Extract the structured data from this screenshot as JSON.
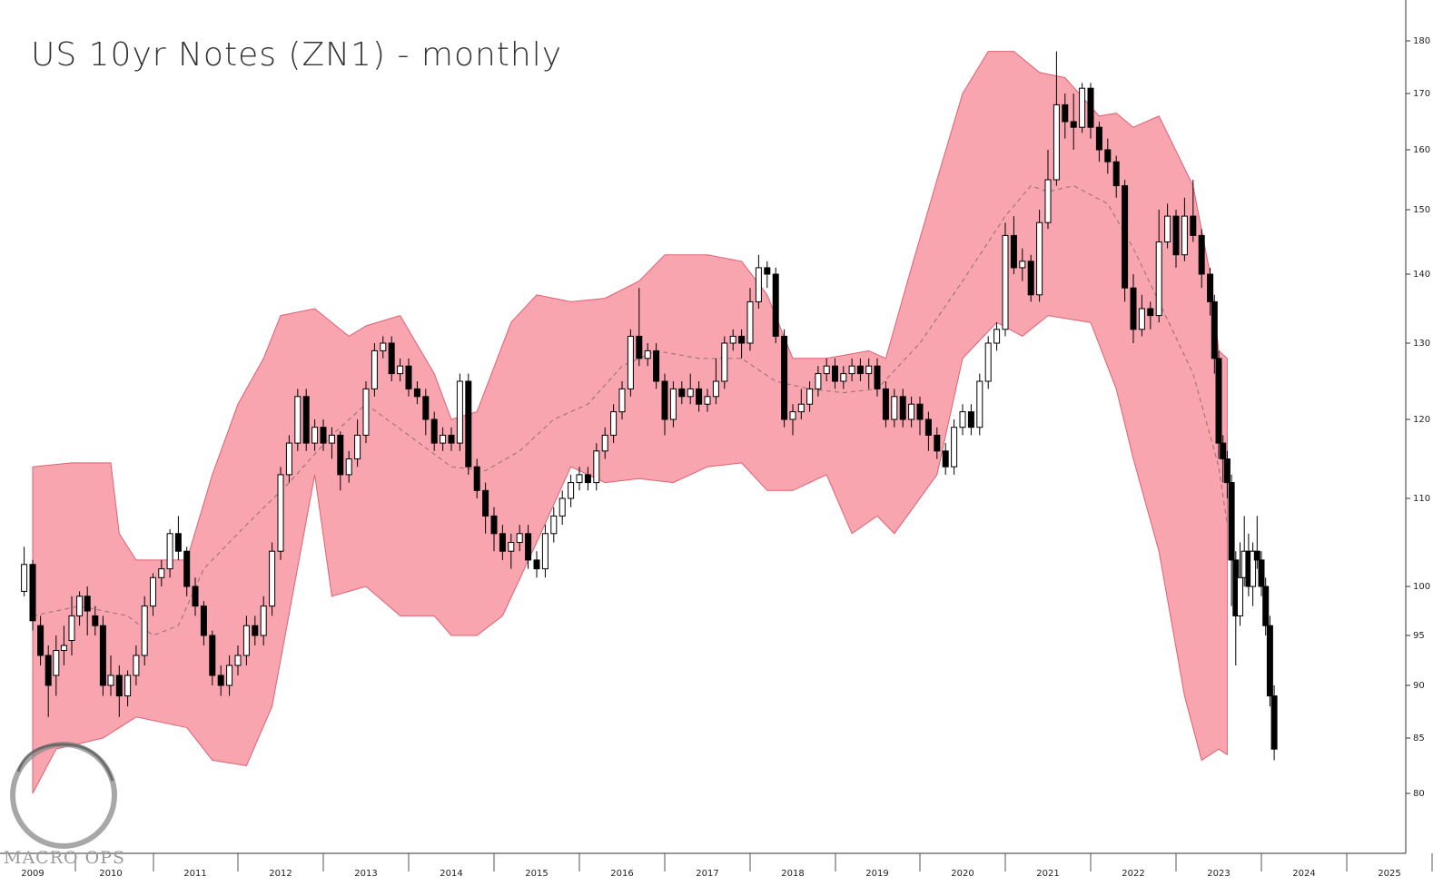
{
  "title": "US 10yr Notes (ZN1) - monthly",
  "logo": {
    "text": "MACRO OPS"
  },
  "colors": {
    "band_fill": "#f8a5b0",
    "band_stroke": "#e06070",
    "midline": "#a07878",
    "down_candle": "#000000",
    "up_candle": "#ffffff"
  },
  "chart_data": {
    "type": "candlestick",
    "title": "US 10yr Notes (ZN1) - monthly",
    "x_ticks": [
      "2009",
      "2010",
      "2011",
      "2012",
      "2013",
      "2014",
      "2015",
      "2016",
      "2017",
      "2018",
      "2019",
      "2020",
      "2021",
      "2022",
      "2023",
      "2024",
      "2025"
    ],
    "y_ticks": [
      "80",
      "85",
      "90",
      "95",
      "100",
      "110",
      "120",
      "130",
      "140",
      "150",
      "160",
      "170",
      "180"
    ],
    "x_range": [
      2009.0,
      2025.5
    ],
    "bollinger_upper": [
      [
        2009.0,
        114
      ],
      [
        2009.5,
        114.5
      ],
      [
        2010.0,
        114.5
      ],
      [
        2010.1,
        106
      ],
      [
        2010.3,
        103
      ],
      [
        2010.9,
        103
      ],
      [
        2011.2,
        113
      ],
      [
        2011.5,
        122
      ],
      [
        2011.8,
        128
      ],
      [
        2012.0,
        134
      ],
      [
        2012.4,
        135
      ],
      [
        2012.8,
        131
      ],
      [
        2013.0,
        132.5
      ],
      [
        2013.4,
        134
      ],
      [
        2013.8,
        126
      ],
      [
        2014.0,
        120
      ],
      [
        2014.3,
        121
      ],
      [
        2014.7,
        133
      ],
      [
        2015.0,
        137
      ],
      [
        2015.4,
        136
      ],
      [
        2015.8,
        136.5
      ],
      [
        2016.2,
        139
      ],
      [
        2016.5,
        143
      ],
      [
        2017.0,
        143
      ],
      [
        2017.4,
        142
      ],
      [
        2017.7,
        137
      ],
      [
        2018.0,
        128
      ],
      [
        2018.4,
        128
      ],
      [
        2018.9,
        129
      ],
      [
        2019.1,
        128
      ],
      [
        2019.4,
        141
      ],
      [
        2019.7,
        155
      ],
      [
        2020.0,
        170
      ],
      [
        2020.3,
        178
      ],
      [
        2020.6,
        178
      ],
      [
        2020.9,
        174
      ],
      [
        2021.2,
        173
      ],
      [
        2021.6,
        166
      ],
      [
        2021.8,
        166.5
      ],
      [
        2022.0,
        164
      ],
      [
        2022.3,
        166
      ],
      [
        2022.7,
        154
      ],
      [
        2022.9,
        140
      ],
      [
        2023.0,
        129
      ],
      [
        2023.1,
        128
      ]
    ],
    "bollinger_lower": [
      [
        2009.0,
        80
      ],
      [
        2009.3,
        84
      ],
      [
        2009.9,
        85
      ],
      [
        2010.3,
        87
      ],
      [
        2010.9,
        86
      ],
      [
        2011.2,
        83
      ],
      [
        2011.6,
        82.5
      ],
      [
        2011.9,
        88
      ],
      [
        2012.4,
        113
      ],
      [
        2012.6,
        99
      ],
      [
        2013.0,
        100
      ],
      [
        2013.4,
        97
      ],
      [
        2013.8,
        97
      ],
      [
        2014.0,
        95
      ],
      [
        2014.3,
        95
      ],
      [
        2014.6,
        97
      ],
      [
        2015.0,
        105
      ],
      [
        2015.4,
        114
      ],
      [
        2015.8,
        112
      ],
      [
        2016.2,
        112.5
      ],
      [
        2016.6,
        112
      ],
      [
        2017.0,
        114
      ],
      [
        2017.4,
        114.5
      ],
      [
        2017.7,
        111
      ],
      [
        2018.0,
        111
      ],
      [
        2018.4,
        113
      ],
      [
        2018.7,
        106
      ],
      [
        2019.0,
        108
      ],
      [
        2019.2,
        106
      ],
      [
        2019.7,
        113
      ],
      [
        2020.0,
        128
      ],
      [
        2020.4,
        133
      ],
      [
        2020.7,
        131
      ],
      [
        2021.0,
        134
      ],
      [
        2021.5,
        133
      ],
      [
        2021.8,
        124
      ],
      [
        2022.0,
        115
      ],
      [
        2022.3,
        104
      ],
      [
        2022.6,
        89
      ],
      [
        2022.8,
        83
      ],
      [
        2023.0,
        84
      ],
      [
        2023.1,
        83.5
      ]
    ],
    "bollinger_mid": [
      [
        2009.0,
        97
      ],
      [
        2009.6,
        98
      ],
      [
        2010.2,
        97
      ],
      [
        2010.5,
        95
      ],
      [
        2010.8,
        96
      ],
      [
        2011.1,
        102
      ],
      [
        2011.6,
        107
      ],
      [
        2012.1,
        112
      ],
      [
        2012.6,
        118
      ],
      [
        2013.0,
        122
      ],
      [
        2013.5,
        118
      ],
      [
        2014.0,
        114
      ],
      [
        2014.4,
        113.5
      ],
      [
        2014.8,
        116
      ],
      [
        2015.2,
        120
      ],
      [
        2015.6,
        122
      ],
      [
        2016.0,
        127
      ],
      [
        2016.4,
        129
      ],
      [
        2016.9,
        128
      ],
      [
        2017.4,
        128
      ],
      [
        2017.8,
        125
      ],
      [
        2018.2,
        124
      ],
      [
        2018.6,
        123.5
      ],
      [
        2019.0,
        124
      ],
      [
        2019.5,
        130
      ],
      [
        2020.0,
        139
      ],
      [
        2020.5,
        149
      ],
      [
        2020.8,
        154
      ],
      [
        2021.0,
        153
      ],
      [
        2021.3,
        154
      ],
      [
        2021.7,
        151
      ],
      [
        2022.0,
        144
      ],
      [
        2022.3,
        136
      ],
      [
        2022.7,
        126
      ],
      [
        2023.0,
        114
      ],
      [
        2023.1,
        107
      ]
    ],
    "candles": [
      [
        2008.9,
        99.5,
        102.5,
        104.5,
        99
      ],
      [
        2009.0,
        102.5,
        96.5,
        103,
        95.5
      ],
      [
        2009.1,
        96,
        93,
        97,
        92
      ],
      [
        2009.2,
        93,
        90,
        94,
        87
      ],
      [
        2009.3,
        91,
        93.5,
        95,
        89
      ],
      [
        2009.4,
        93.5,
        94,
        96,
        92
      ],
      [
        2009.5,
        94.5,
        97,
        99,
        93
      ],
      [
        2009.6,
        97,
        99,
        99.5,
        96
      ],
      [
        2009.7,
        99,
        97.5,
        100,
        95
      ],
      [
        2009.8,
        97,
        96,
        98,
        95
      ],
      [
        2009.9,
        96,
        90,
        97,
        89
      ],
      [
        2010.0,
        90,
        91,
        93,
        89
      ],
      [
        2010.1,
        91,
        89,
        92,
        87
      ],
      [
        2010.2,
        89,
        91,
        91.5,
        88
      ],
      [
        2010.3,
        91,
        93,
        94,
        90
      ],
      [
        2010.4,
        93,
        98,
        99,
        92
      ],
      [
        2010.5,
        98,
        101,
        101.5,
        97
      ],
      [
        2010.6,
        101,
        102,
        103,
        100
      ],
      [
        2010.7,
        102,
        106,
        106.5,
        101
      ],
      [
        2010.8,
        106,
        104,
        108,
        103
      ],
      [
        2010.9,
        104,
        100,
        104.5,
        99
      ],
      [
        2011.0,
        100,
        98,
        101,
        97
      ],
      [
        2011.1,
        98,
        95,
        98.5,
        94
      ],
      [
        2011.2,
        95,
        91,
        95.5,
        90
      ],
      [
        2011.3,
        91,
        90,
        92,
        89
      ],
      [
        2011.4,
        90,
        92,
        93,
        89
      ],
      [
        2011.5,
        92,
        93,
        94,
        91
      ],
      [
        2011.6,
        93,
        96,
        97,
        92
      ],
      [
        2011.7,
        96,
        95,
        97,
        94
      ],
      [
        2011.8,
        95,
        98,
        99,
        94
      ],
      [
        2011.9,
        98,
        104,
        105,
        97
      ],
      [
        2012.0,
        104,
        113,
        114,
        103
      ],
      [
        2012.1,
        113,
        117,
        118,
        112
      ],
      [
        2012.2,
        117,
        123,
        124,
        116
      ],
      [
        2012.3,
        123,
        117,
        124,
        116
      ],
      [
        2012.4,
        117,
        119,
        120,
        116
      ],
      [
        2012.5,
        119,
        117,
        120,
        116
      ],
      [
        2012.6,
        117,
        118,
        119,
        115
      ],
      [
        2012.7,
        118,
        113,
        118.5,
        111
      ],
      [
        2012.8,
        113,
        115,
        116,
        112
      ],
      [
        2012.9,
        115,
        118,
        120,
        114
      ],
      [
        2013.0,
        118,
        124,
        125,
        117
      ],
      [
        2013.1,
        124,
        129,
        130,
        123
      ],
      [
        2013.2,
        129,
        130,
        131,
        128
      ],
      [
        2013.3,
        130,
        126,
        131,
        125
      ],
      [
        2013.4,
        126,
        127,
        128,
        125
      ],
      [
        2013.5,
        127,
        124,
        128,
        123
      ],
      [
        2013.6,
        124,
        123,
        125,
        122
      ],
      [
        2013.7,
        123,
        120,
        124,
        118
      ],
      [
        2013.8,
        120,
        117,
        121,
        116
      ],
      [
        2013.9,
        117,
        118,
        119,
        116
      ],
      [
        2014.0,
        118,
        117,
        119,
        116
      ],
      [
        2014.1,
        117,
        125,
        126,
        116
      ],
      [
        2014.2,
        125,
        114,
        126,
        113
      ],
      [
        2014.3,
        114,
        111,
        115,
        110
      ],
      [
        2014.4,
        111,
        108,
        112,
        106
      ],
      [
        2014.5,
        108,
        106,
        109,
        104
      ],
      [
        2014.6,
        106,
        104,
        107,
        103
      ],
      [
        2014.7,
        104,
        105,
        106,
        102
      ],
      [
        2014.8,
        105,
        106,
        107,
        104
      ],
      [
        2014.9,
        106,
        103,
        107,
        102
      ],
      [
        2015.0,
        103,
        102,
        104,
        101
      ],
      [
        2015.1,
        102,
        106,
        107,
        101
      ],
      [
        2015.2,
        106,
        108,
        109,
        105
      ],
      [
        2015.3,
        108,
        110,
        111,
        107
      ],
      [
        2015.4,
        110,
        112,
        113,
        109
      ],
      [
        2015.5,
        112,
        113,
        114,
        111
      ],
      [
        2015.6,
        113,
        112,
        114,
        111
      ],
      [
        2015.7,
        112,
        116,
        117,
        111
      ],
      [
        2015.8,
        116,
        118,
        119,
        115
      ],
      [
        2015.9,
        118,
        121,
        122,
        117
      ],
      [
        2016.0,
        121,
        124,
        125,
        120
      ],
      [
        2016.1,
        124,
        131,
        132,
        123
      ],
      [
        2016.2,
        131,
        128,
        138,
        127
      ],
      [
        2016.3,
        128,
        129,
        130,
        127
      ],
      [
        2016.4,
        129,
        125,
        130,
        124
      ],
      [
        2016.5,
        125,
        120,
        126,
        118
      ],
      [
        2016.6,
        120,
        124,
        125,
        119
      ],
      [
        2016.7,
        124,
        123,
        125,
        122
      ],
      [
        2016.8,
        123,
        124,
        126,
        122
      ],
      [
        2016.9,
        124,
        122,
        125,
        121
      ],
      [
        2017.0,
        122,
        123,
        124,
        121
      ],
      [
        2017.1,
        123,
        125,
        128,
        122
      ],
      [
        2017.2,
        125,
        130,
        131,
        124
      ],
      [
        2017.3,
        130,
        131,
        132,
        129
      ],
      [
        2017.4,
        131,
        130,
        132,
        128
      ],
      [
        2017.5,
        130,
        136,
        138,
        129
      ],
      [
        2017.6,
        136,
        141,
        143,
        135
      ],
      [
        2017.7,
        141,
        140,
        142,
        138
      ],
      [
        2017.8,
        140,
        131,
        141,
        130
      ],
      [
        2017.9,
        131,
        120,
        132,
        119
      ],
      [
        2018.0,
        120,
        121,
        122,
        118
      ],
      [
        2018.1,
        121,
        122,
        124,
        120
      ],
      [
        2018.2,
        122,
        124,
        125,
        121
      ],
      [
        2018.3,
        124,
        126,
        127,
        123
      ],
      [
        2018.4,
        126,
        127,
        128,
        125
      ],
      [
        2018.5,
        127,
        125,
        128,
        124
      ],
      [
        2018.6,
        125,
        126,
        127,
        124
      ],
      [
        2018.7,
        126,
        127,
        128,
        125
      ],
      [
        2018.8,
        127,
        126,
        128,
        125
      ],
      [
        2018.9,
        126,
        127,
        128,
        124
      ],
      [
        2019.0,
        127,
        124,
        128,
        123
      ],
      [
        2019.1,
        124,
        120,
        125,
        119
      ],
      [
        2019.2,
        120,
        123,
        124,
        119
      ],
      [
        2019.3,
        123,
        120,
        124,
        119
      ],
      [
        2019.4,
        120,
        122,
        123,
        119
      ],
      [
        2019.5,
        122,
        120,
        123,
        118
      ],
      [
        2019.6,
        120,
        118,
        121,
        116
      ],
      [
        2019.7,
        118,
        116,
        119,
        115
      ],
      [
        2019.8,
        116,
        114,
        117,
        113
      ],
      [
        2019.9,
        114,
        119,
        120,
        113
      ],
      [
        2020.0,
        119,
        121,
        122,
        118
      ],
      [
        2020.1,
        121,
        119,
        122,
        118
      ],
      [
        2020.2,
        119,
        125,
        126,
        118
      ],
      [
        2020.3,
        125,
        130,
        131,
        124
      ],
      [
        2020.4,
        130,
        132,
        133,
        129
      ],
      [
        2020.5,
        132,
        146,
        148,
        131
      ],
      [
        2020.6,
        146,
        141,
        149,
        140
      ],
      [
        2020.7,
        141,
        142,
        144,
        139
      ],
      [
        2020.8,
        142,
        137,
        143,
        136
      ],
      [
        2020.9,
        137,
        148,
        150,
        136
      ],
      [
        2021.0,
        148,
        155,
        160,
        147
      ],
      [
        2021.1,
        155,
        168,
        178,
        154
      ],
      [
        2021.2,
        168,
        165,
        170,
        162
      ],
      [
        2021.3,
        165,
        164,
        170,
        160
      ],
      [
        2021.4,
        164,
        171,
        172,
        163
      ],
      [
        2021.5,
        171,
        164,
        172,
        162
      ],
      [
        2021.6,
        164,
        160,
        165,
        158
      ],
      [
        2021.7,
        160,
        158,
        162,
        156
      ],
      [
        2021.8,
        158,
        154,
        159,
        152
      ],
      [
        2021.9,
        154,
        138,
        155,
        136
      ],
      [
        2022.0,
        138,
        132,
        140,
        130
      ],
      [
        2022.1,
        132,
        135,
        137,
        131
      ],
      [
        2022.2,
        135,
        134,
        136,
        132
      ],
      [
        2022.3,
        134,
        145,
        150,
        133
      ],
      [
        2022.4,
        145,
        149,
        151,
        144
      ],
      [
        2022.5,
        149,
        143,
        150,
        141
      ],
      [
        2022.6,
        143,
        149,
        152,
        142
      ],
      [
        2022.7,
        149,
        146,
        155,
        145
      ],
      [
        2022.8,
        146,
        140,
        147,
        138
      ],
      [
        2022.9,
        140,
        136,
        141,
        134
      ],
      [
        2022.95,
        136,
        128,
        137,
        126
      ],
      [
        2023.0,
        128,
        117,
        129,
        115
      ],
      [
        2023.05,
        117,
        115,
        118,
        112
      ],
      [
        2023.1,
        115,
        112,
        116,
        110
      ],
      [
        2023.15,
        112,
        103,
        113,
        98
      ],
      [
        2023.2,
        103,
        97,
        104,
        92
      ],
      [
        2023.25,
        97,
        101,
        105,
        96
      ],
      [
        2023.3,
        101,
        104,
        108,
        100
      ],
      [
        2023.35,
        104,
        100,
        106,
        99
      ],
      [
        2023.4,
        100,
        104,
        105,
        98
      ],
      [
        2023.45,
        104,
        103,
        108,
        102
      ],
      [
        2023.5,
        103,
        100,
        104,
        99
      ],
      [
        2023.55,
        100,
        96,
        101,
        95
      ],
      [
        2023.6,
        96,
        89,
        97,
        88
      ],
      [
        2023.65,
        89,
        84,
        90,
        83
      ]
    ]
  }
}
